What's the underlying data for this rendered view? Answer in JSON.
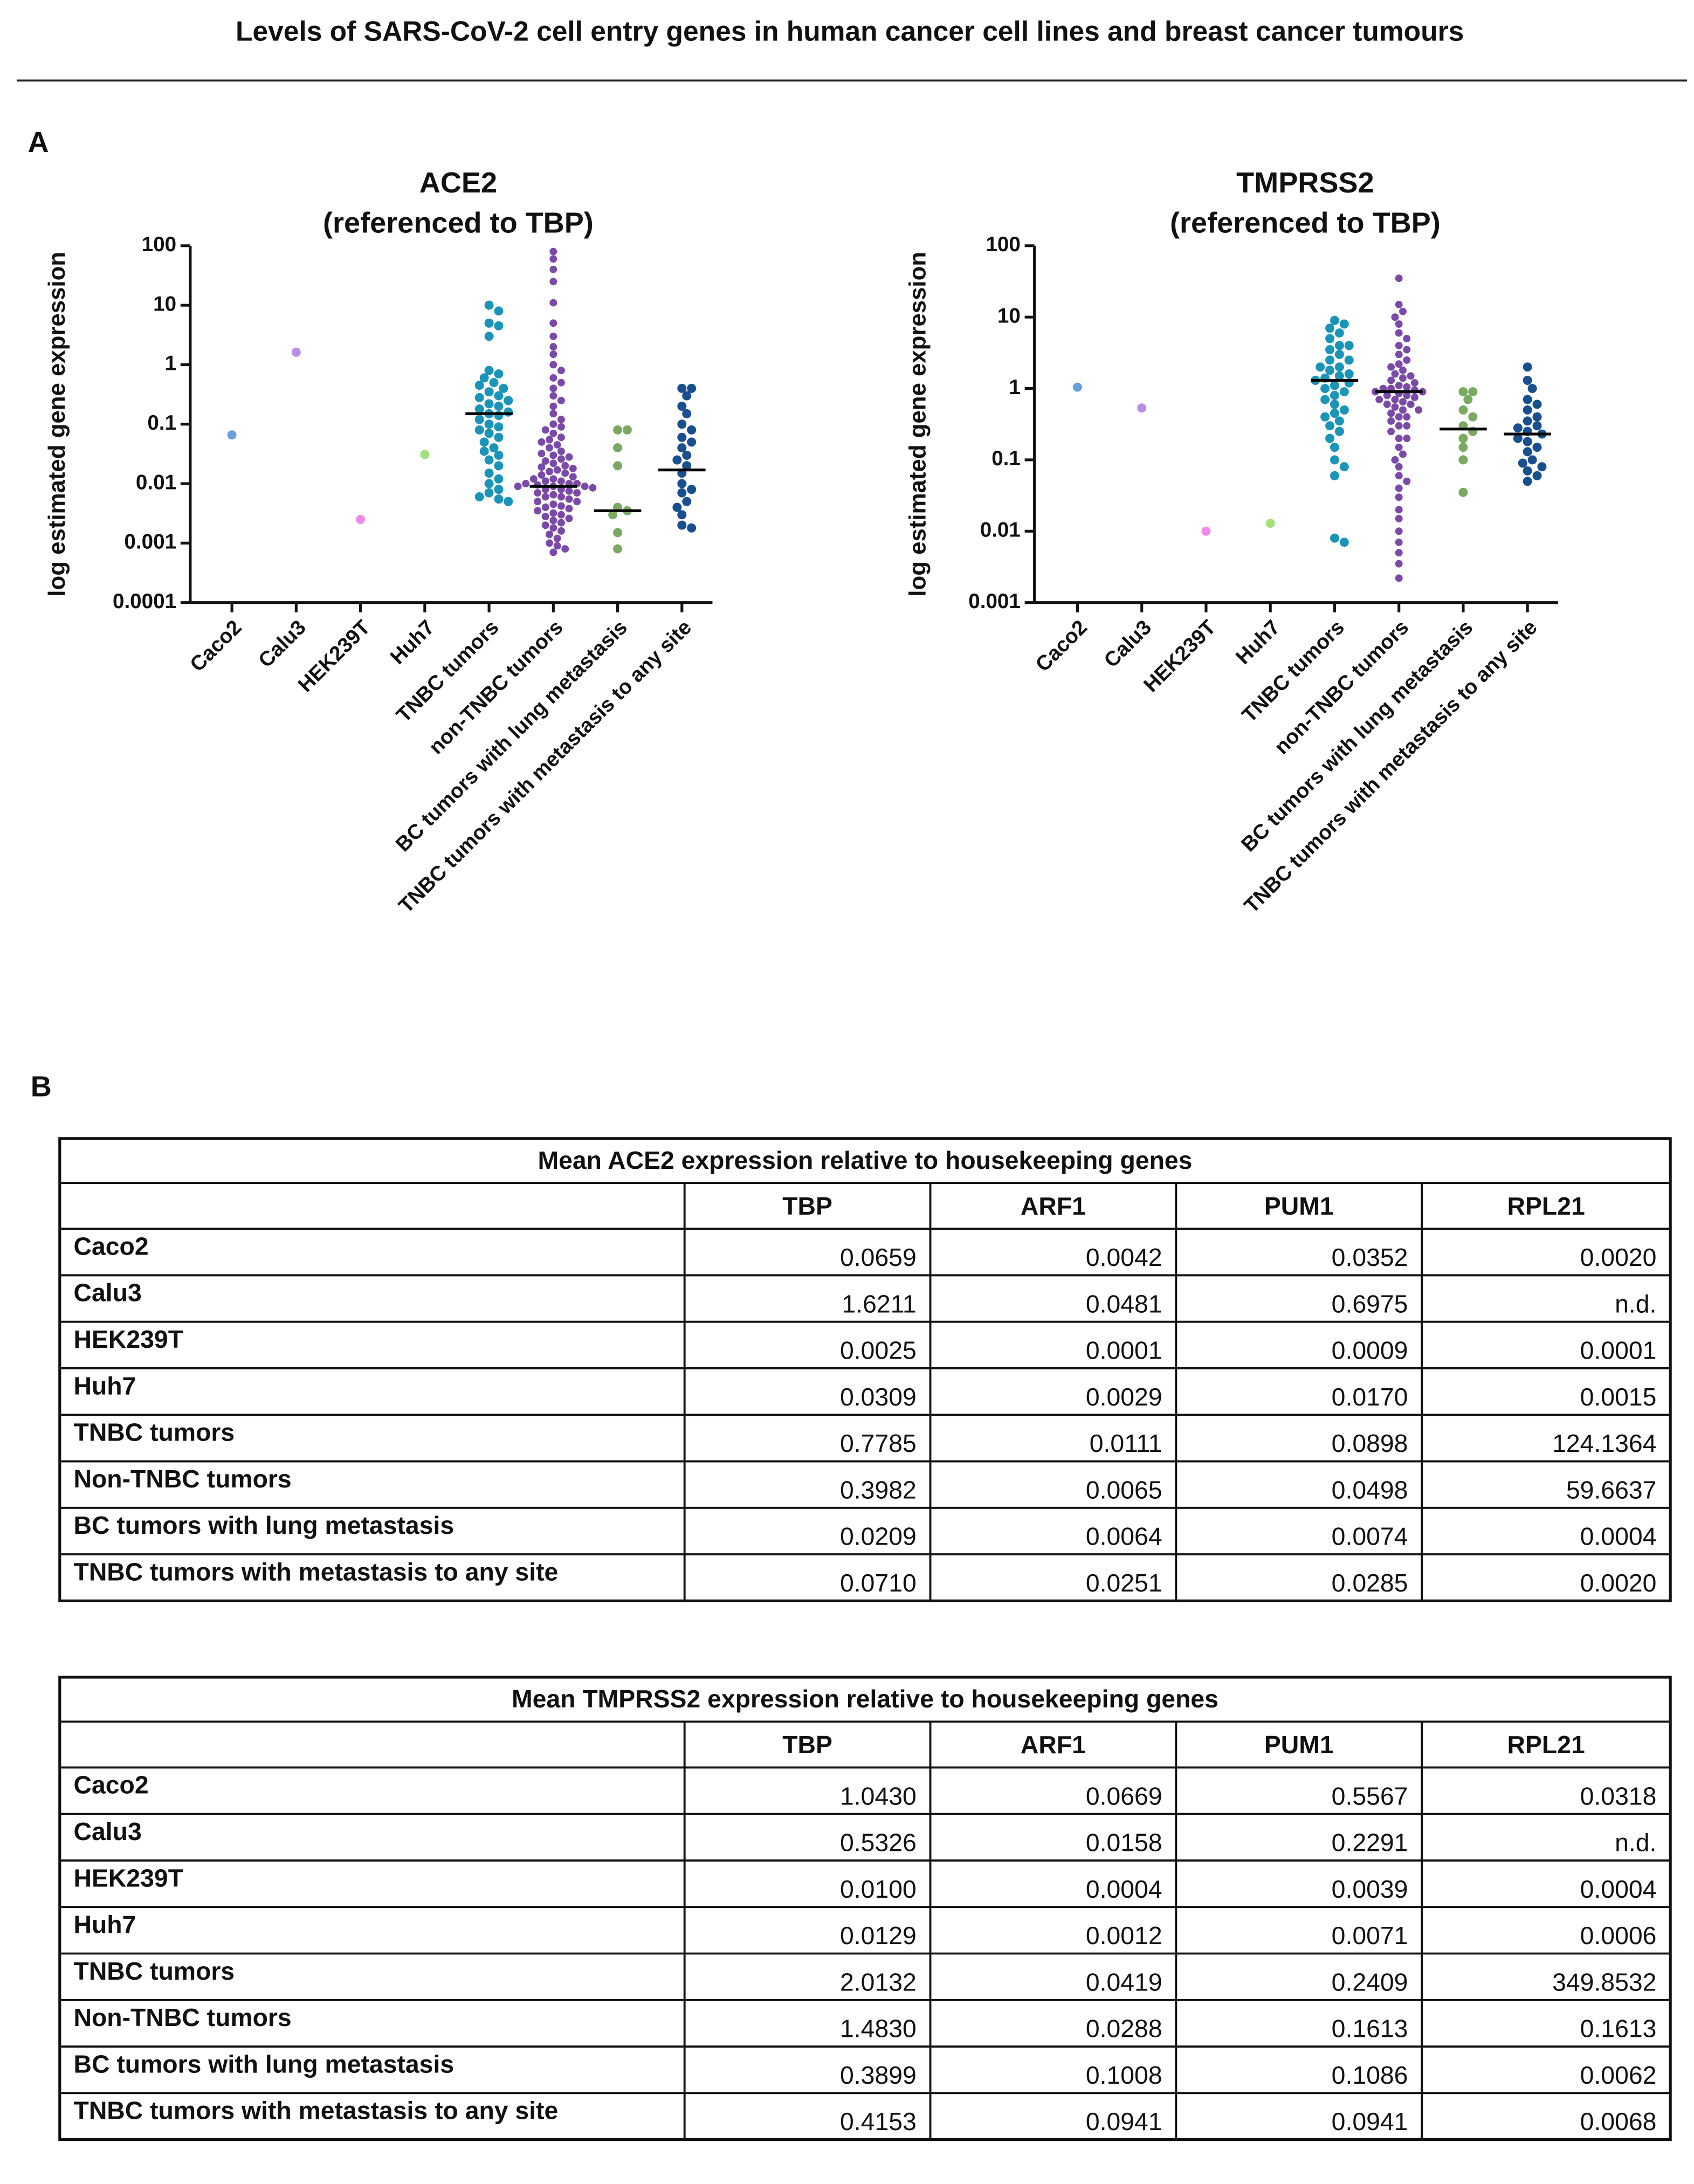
{
  "title": "Levels of SARS-CoV-2 cell entry genes in human cancer cell lines and breast cancer tumours",
  "panel_a": "A",
  "panel_b": "B",
  "chart_data": [
    {
      "type": "strip",
      "title": "ACE2",
      "subtitle": "(referenced to TBP)",
      "y_label": "log estimated gene expression",
      "log_scale": true,
      "ylim": [
        0.0001,
        100
      ],
      "yticks": [
        0.0001,
        0.001,
        0.01,
        0.1,
        1,
        10,
        100
      ],
      "categories": [
        "Caco2",
        "Calu3",
        "HEK239T",
        "Huh7",
        "TNBC tumors",
        "non-TNBC tumors",
        "BC tumors with lung metastasis",
        "TNBC tumors with metastasis to any site"
      ],
      "colors": [
        "#6a9ee0",
        "#b98ee6",
        "#f08ae8",
        "#a6e07a",
        "#1a95b8",
        "#7b4aa8",
        "#7aaa62",
        "#1a4f8f"
      ],
      "values": [
        [
          0.0659
        ],
        [
          1.6211
        ],
        [
          0.0025
        ],
        [
          0.0309
        ],
        [
          10,
          8,
          5,
          4.5,
          3,
          0.8,
          0.7,
          0.6,
          0.5,
          0.45,
          0.4,
          0.35,
          0.3,
          0.28,
          0.25,
          0.22,
          0.2,
          0.18,
          0.16,
          0.15,
          0.14,
          0.12,
          0.1,
          0.09,
          0.08,
          0.07,
          0.06,
          0.05,
          0.04,
          0.035,
          0.03,
          0.025,
          0.02,
          0.015,
          0.012,
          0.01,
          0.008,
          0.007,
          0.006,
          0.0055,
          0.005
        ],
        [
          80,
          60,
          40,
          25,
          11,
          5,
          3,
          2,
          1.5,
          1,
          0.8,
          0.6,
          0.5,
          0.4,
          0.3,
          0.25,
          0.2,
          0.15,
          0.12,
          0.1,
          0.09,
          0.08,
          0.07,
          0.06,
          0.055,
          0.05,
          0.045,
          0.04,
          0.035,
          0.032,
          0.03,
          0.028,
          0.026,
          0.024,
          0.022,
          0.02,
          0.019,
          0.018,
          0.017,
          0.016,
          0.015,
          0.014,
          0.013,
          0.012,
          0.012,
          0.011,
          0.011,
          0.01,
          0.01,
          0.01,
          0.0095,
          0.009,
          0.009,
          0.009,
          0.0085,
          0.008,
          0.008,
          0.0075,
          0.007,
          0.007,
          0.0065,
          0.006,
          0.006,
          0.0055,
          0.005,
          0.005,
          0.0045,
          0.0042,
          0.004,
          0.0038,
          0.0035,
          0.0032,
          0.003,
          0.0028,
          0.0026,
          0.0024,
          0.0022,
          0.002,
          0.0018,
          0.0016,
          0.0014,
          0.0012,
          0.001,
          0.0009,
          0.0008,
          0.0007
        ],
        [
          0.08,
          0.08,
          0.04,
          0.02,
          0.004,
          0.0035,
          0.003,
          0.0015,
          0.0008
        ],
        [
          0.4,
          0.4,
          0.3,
          0.2,
          0.15,
          0.1,
          0.08,
          0.06,
          0.05,
          0.04,
          0.03,
          0.025,
          0.02,
          0.015,
          0.01,
          0.008,
          0.007,
          0.005,
          0.004,
          0.003,
          0.002,
          0.0018
        ]
      ],
      "medians": [
        null,
        null,
        null,
        null,
        0.15,
        0.009,
        0.0035,
        0.017
      ]
    },
    {
      "type": "strip",
      "title": "TMPRSS2",
      "subtitle": "(referenced to TBP)",
      "y_label": "log estimated gene expression",
      "log_scale": true,
      "ylim": [
        0.001,
        100
      ],
      "yticks": [
        0.001,
        0.01,
        0.1,
        1,
        10,
        100
      ],
      "categories": [
        "Caco2",
        "Calu3",
        "HEK239T",
        "Huh7",
        "TNBC tumors",
        "non-TNBC tumors",
        "BC tumors with lung metastasis",
        "TNBC tumors with metastasis to any site"
      ],
      "colors": [
        "#6a9ee0",
        "#b98ee6",
        "#f08ae8",
        "#a6e07a",
        "#1a95b8",
        "#7b4aa8",
        "#7aaa62",
        "#1a4f8f"
      ],
      "values": [
        [
          1.043
        ],
        [
          0.5326
        ],
        [
          0.01
        ],
        [
          0.0129
        ],
        [
          9,
          8,
          7,
          6,
          5,
          4,
          4,
          3.5,
          3,
          2.5,
          2.5,
          2,
          2,
          1.8,
          1.6,
          1.5,
          1.4,
          1.3,
          1.2,
          1.1,
          1,
          0.9,
          0.8,
          0.7,
          0.6,
          0.5,
          0.45,
          0.4,
          0.35,
          0.3,
          0.25,
          0.2,
          0.15,
          0.1,
          0.08,
          0.06,
          0.008,
          0.007
        ],
        [
          35,
          15,
          12,
          10,
          8,
          6,
          5,
          4,
          3.5,
          3,
          2.5,
          2.2,
          2,
          1.8,
          1.6,
          1.5,
          1.4,
          1.3,
          1.2,
          1.1,
          1.05,
          1,
          1,
          0.95,
          0.9,
          0.9,
          0.85,
          0.8,
          0.8,
          0.75,
          0.7,
          0.7,
          0.65,
          0.6,
          0.6,
          0.55,
          0.5,
          0.5,
          0.45,
          0.4,
          0.4,
          0.35,
          0.3,
          0.3,
          0.25,
          0.2,
          0.2,
          0.15,
          0.12,
          0.1,
          0.08,
          0.06,
          0.05,
          0.04,
          0.03,
          0.02,
          0.015,
          0.01,
          0.007,
          0.005,
          0.0035,
          0.0022
        ],
        [
          0.9,
          0.9,
          0.7,
          0.5,
          0.4,
          0.3,
          0.25,
          0.2,
          0.15,
          0.1,
          0.035
        ],
        [
          2,
          1.3,
          1,
          0.7,
          0.6,
          0.5,
          0.4,
          0.35,
          0.3,
          0.28,
          0.25,
          0.23,
          0.2,
          0.18,
          0.15,
          0.13,
          0.1,
          0.09,
          0.08,
          0.07,
          0.06,
          0.05
        ]
      ],
      "medians": [
        null,
        null,
        null,
        null,
        1.3,
        0.9,
        0.27,
        0.23
      ]
    }
  ],
  "tables": [
    {
      "title": "Mean ACE2 expression relative to housekeeping genes",
      "columns": [
        "TBP",
        "ARF1",
        "PUM1",
        "RPL21"
      ],
      "rows": [
        [
          "Caco2",
          "0.0659",
          "0.0042",
          "0.0352",
          "0.0020"
        ],
        [
          "Calu3",
          "1.6211",
          "0.0481",
          "0.6975",
          "n.d."
        ],
        [
          "HEK239T",
          "0.0025",
          "0.0001",
          "0.0009",
          "0.0001"
        ],
        [
          "Huh7",
          "0.0309",
          "0.0029",
          "0.0170",
          "0.0015"
        ],
        [
          "TNBC tumors",
          "0.7785",
          "0.0111",
          "0.0898",
          "124.1364"
        ],
        [
          "Non-TNBC tumors",
          "0.3982",
          "0.0065",
          "0.0498",
          "59.6637"
        ],
        [
          "BC tumors with lung metastasis",
          "0.0209",
          "0.0064",
          "0.0074",
          "0.0004"
        ],
        [
          "TNBC tumors with metastasis to any site",
          "0.0710",
          "0.0251",
          "0.0285",
          "0.0020"
        ]
      ]
    },
    {
      "title": "Mean TMPRSS2 expression relative to housekeeping genes",
      "columns": [
        "TBP",
        "ARF1",
        "PUM1",
        "RPL21"
      ],
      "rows": [
        [
          "Caco2",
          "1.0430",
          "0.0669",
          "0.5567",
          "0.0318"
        ],
        [
          "Calu3",
          "0.5326",
          "0.0158",
          "0.2291",
          "n.d."
        ],
        [
          "HEK239T",
          "0.0100",
          "0.0004",
          "0.0039",
          "0.0004"
        ],
        [
          "Huh7",
          "0.0129",
          "0.0012",
          "0.0071",
          "0.0006"
        ],
        [
          "TNBC tumors",
          "2.0132",
          "0.0419",
          "0.2409",
          "349.8532"
        ],
        [
          "Non-TNBC tumors",
          "1.4830",
          "0.0288",
          "0.1613",
          "0.1613"
        ],
        [
          "BC tumors with lung metastasis",
          "0.3899",
          "0.1008",
          "0.1086",
          "0.0062"
        ],
        [
          "TNBC tumors with metastasis to any site",
          "0.4153",
          "0.0941",
          "0.0941",
          "0.0068"
        ]
      ]
    }
  ]
}
